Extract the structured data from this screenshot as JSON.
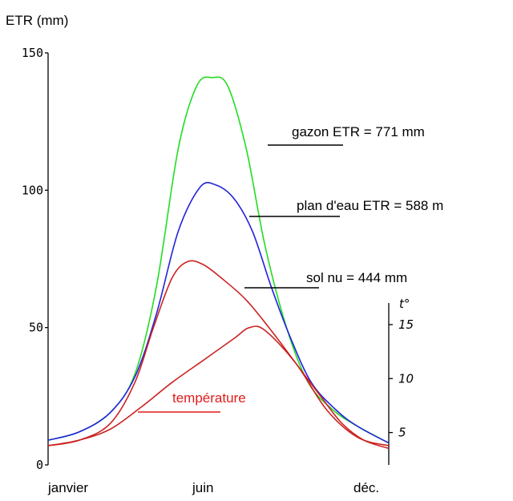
{
  "chart_data": {
    "type": "line",
    "ylabel": "ETR (mm)",
    "ylim": [
      0,
      150
    ],
    "yticks": [
      0,
      50,
      100,
      150
    ],
    "xlim": [
      1,
      12
    ],
    "xtick_labels": [
      {
        "x": 1.2,
        "label": "janvier"
      },
      {
        "x": 6.1,
        "label": "juin"
      },
      {
        "x": 11.8,
        "label": "déc."
      }
    ],
    "y2label": "t°",
    "y2lim": [
      2,
      17
    ],
    "y2ticks": [
      5,
      10,
      15
    ],
    "series": [
      {
        "name": "gazon ETR = 771 mm",
        "color": "#22dd22",
        "x": [
          1,
          2,
          3,
          3.8,
          4.5,
          5.2,
          5.8,
          6.3,
          6.8,
          7.4,
          8,
          8.7,
          9.4,
          10.2,
          11,
          12
        ],
        "y": [
          9,
          12,
          19,
          33,
          65,
          115,
          138,
          141,
          138,
          115,
          80,
          50,
          30,
          20,
          14,
          8
        ]
      },
      {
        "name": "plan d'eau ETR = 588 mm",
        "color": "#2222dd",
        "x": [
          1,
          2,
          3,
          3.8,
          4.5,
          5.2,
          5.9,
          6.4,
          7,
          7.6,
          8.2,
          8.8,
          9.5,
          10.3,
          11,
          12
        ],
        "y": [
          9,
          12,
          19,
          32,
          55,
          85,
          101,
          102,
          97,
          85,
          65,
          47,
          30,
          20,
          14,
          8
        ]
      },
      {
        "name": "sol nu = 444 mm",
        "color": "#cc2222",
        "x": [
          1,
          2,
          3,
          3.8,
          4.4,
          5,
          5.5,
          6,
          6.6,
          7.4,
          8.2,
          9,
          9.8,
          10.5,
          11.2,
          12
        ],
        "y": [
          7,
          9,
          15,
          30,
          50,
          68,
          74,
          73,
          68,
          60,
          49,
          37,
          25,
          15,
          9,
          6
        ]
      },
      {
        "name": "température",
        "color": "#cc2222",
        "x": [
          1,
          2,
          3,
          4,
          5,
          6,
          7,
          7.5,
          8,
          9,
          10,
          11,
          12
        ],
        "y": [
          7,
          9,
          13,
          21,
          30,
          38,
          46,
          50,
          49,
          37,
          20,
          10,
          7
        ]
      }
    ],
    "annotations": [
      {
        "text": "gazon ETR = 771 mm"
      },
      {
        "text": "plan d'eau ETR = 588 m"
      },
      {
        "text": "sol nu = 444 mm"
      },
      {
        "text": "température",
        "color": "#e11b1b"
      }
    ]
  }
}
